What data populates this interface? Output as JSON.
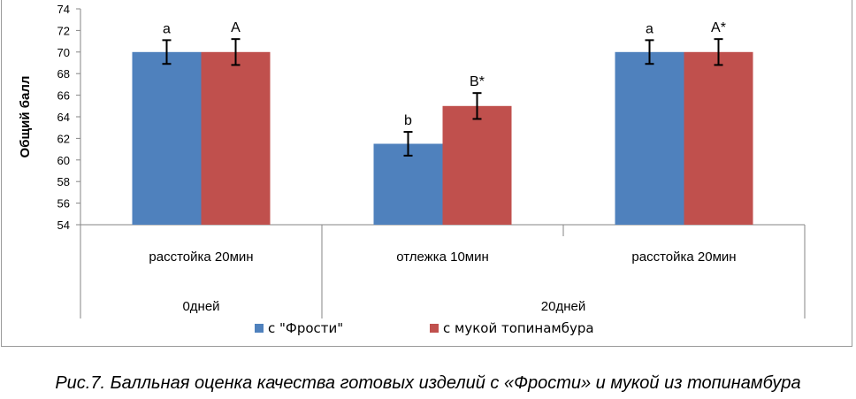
{
  "chart_data": {
    "type": "bar",
    "ylabel": "Общий балл",
    "ylim": [
      54,
      74
    ],
    "yticks": [
      54,
      56,
      58,
      60,
      62,
      64,
      66,
      68,
      70,
      72,
      74
    ],
    "categories": [
      "расстойка 20мин",
      "отлежка 10мин",
      "расстойка 20мин"
    ],
    "groups": [
      {
        "label": "0дней",
        "span": [
          0,
          0
        ]
      },
      {
        "label": "20дней",
        "span": [
          1,
          2
        ]
      }
    ],
    "series": [
      {
        "name": "с \"Фрости\"",
        "color": "#4f81bd",
        "values": [
          70,
          61.5,
          70
        ],
        "errors": [
          1.1,
          1.1,
          1.1
        ],
        "labels": [
          "a",
          "b",
          "a"
        ]
      },
      {
        "name": "с мукой топинамбура",
        "color": "#c0504d",
        "values": [
          70,
          65,
          70
        ],
        "errors": [
          1.2,
          1.2,
          1.2
        ],
        "labels": [
          "A",
          "B*",
          "A*"
        ]
      }
    ],
    "legend_position": "bottom"
  },
  "caption": "Рис.7. Балльная оценка качества готовых изделий с «Фрости» и мукой из топинамбура"
}
